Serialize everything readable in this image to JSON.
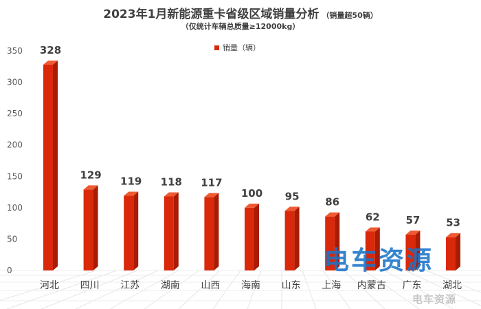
{
  "chart_data": {
    "type": "bar",
    "title": "2023年1月新能源重卡省级区域销量分析",
    "title_note": "（销量超50辆）",
    "subtitle": "（仅统计车辆总质量≥12000kg）",
    "categories": [
      "河北",
      "四川",
      "江苏",
      "湖南",
      "山西",
      "海南",
      "山东",
      "上海",
      "内蒙古",
      "广东",
      "湖北"
    ],
    "series": [
      {
        "name": "销量（辆）",
        "values": [
          328,
          129,
          119,
          118,
          117,
          100,
          95,
          86,
          62,
          57,
          53
        ]
      }
    ],
    "ylim": [
      0,
      350
    ],
    "yticks": [
      0,
      50,
      100,
      150,
      200,
      250,
      300,
      350
    ],
    "legend_position": "top-center",
    "grid": false,
    "bar_style": "3d-cylinder",
    "colors": {
      "bar": "#d9280a",
      "bar_dark": "#a81b05",
      "bar_light": "#ef5a33",
      "text": "#404040"
    }
  },
  "watermark": {
    "main": "电车资源",
    "small": "电车资源"
  }
}
